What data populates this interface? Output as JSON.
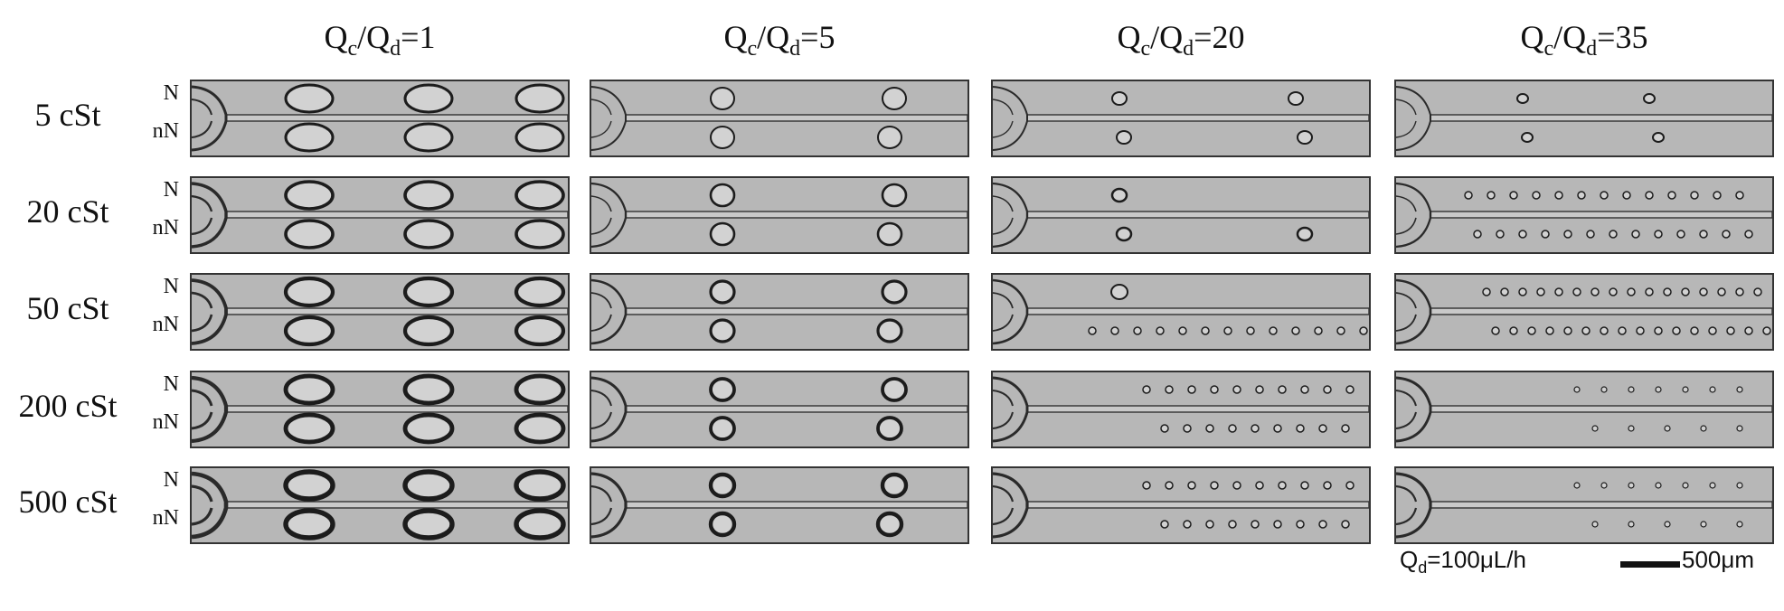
{
  "column_headers": [
    {
      "base": "Q",
      "sub1": "c",
      "mid": "/Q",
      "sub2": "d",
      "value": "=1"
    },
    {
      "base": "Q",
      "sub1": "c",
      "mid": "/Q",
      "sub2": "d",
      "value": "=5"
    },
    {
      "base": "Q",
      "sub1": "c",
      "mid": "/Q",
      "sub2": "d",
      "value": "=20"
    },
    {
      "base": "Q",
      "sub1": "c",
      "mid": "/Q",
      "sub2": "d",
      "value": "=35"
    }
  ],
  "row_labels": [
    "5 cSt",
    "20 cSt",
    "50 cSt",
    "200 cSt",
    "500 cSt"
  ],
  "channel_labels": {
    "top": "N",
    "bottom": "nN"
  },
  "footer": {
    "flow_base": "Q",
    "flow_sub": "d",
    "flow_value": "=100μL/h",
    "scale_label": "500μm"
  }
}
